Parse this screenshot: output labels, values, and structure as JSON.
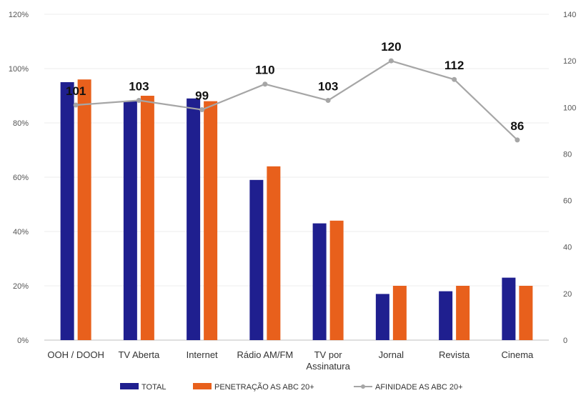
{
  "chart_data": {
    "type": "bar",
    "categories": [
      [
        "OOH / DOOH"
      ],
      [
        "TV Aberta"
      ],
      [
        "Internet"
      ],
      [
        "Rádio AM/FM"
      ],
      [
        "TV por",
        "Assinatura"
      ],
      [
        "Jornal"
      ],
      [
        "Revista"
      ],
      [
        "Cinema"
      ]
    ],
    "series": [
      {
        "name": "TOTAL",
        "type": "bar",
        "axis": "left",
        "color": "#1f1f8f",
        "values": [
          95,
          88,
          89,
          59,
          43,
          17,
          18,
          23
        ]
      },
      {
        "name": "PENETRAÇÃO AS ABC 20+",
        "type": "bar",
        "axis": "left",
        "color": "#e8601c",
        "values": [
          96,
          90,
          88,
          64,
          44,
          20,
          20,
          20
        ]
      },
      {
        "name": "AFINIDADE AS ABC 20+",
        "type": "line",
        "axis": "right",
        "color": "#a6a6a6",
        "values": [
          101,
          103,
          99,
          110,
          103,
          120,
          112,
          86
        ],
        "labels": [
          "101",
          "103",
          "99",
          "110",
          "103",
          "120",
          "112",
          "86"
        ]
      }
    ],
    "left_axis": {
      "min": 0,
      "max": 120,
      "step": 20,
      "tick_labels": [
        "0%",
        "20%",
        "40%",
        "60%",
        "80%",
        "100%",
        "120%"
      ]
    },
    "right_axis": {
      "min": 0,
      "max": 140,
      "step": 20,
      "tick_labels": [
        "0",
        "20",
        "40",
        "60",
        "80",
        "100",
        "120",
        "140"
      ]
    },
    "grid": true,
    "legend": "bottom-center"
  }
}
